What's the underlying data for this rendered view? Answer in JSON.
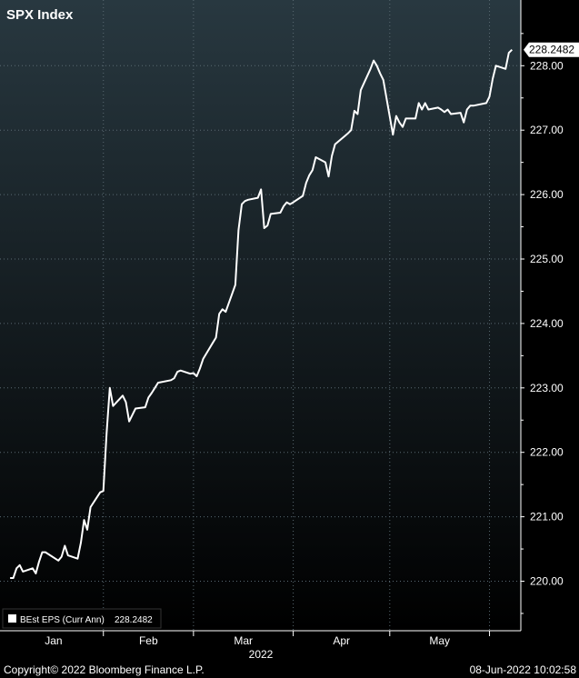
{
  "chart_data": {
    "type": "line",
    "title": "SPX Index",
    "xlabel": "2022",
    "ylabel": "",
    "ylim": [
      219.4,
      228.8
    ],
    "y_ticks": [
      "220.00",
      "221.00",
      "222.00",
      "223.00",
      "224.00",
      "225.00",
      "226.00",
      "227.00",
      "228.00"
    ],
    "months": [
      "Jan",
      "Feb",
      "Mar",
      "Apr",
      "May"
    ],
    "year": "2022",
    "last_value_label": "228.2482",
    "grid": true,
    "legend_position": "bottom-left",
    "series": [
      {
        "name": "BEst EPS (Curr Ann)",
        "last_value": "228.2482",
        "color": "#ffffff",
        "x": [
          "2022-01-03",
          "2022-01-04",
          "2022-01-05",
          "2022-01-06",
          "2022-01-07",
          "2022-01-10",
          "2022-01-11",
          "2022-01-12",
          "2022-01-13",
          "2022-01-14",
          "2022-01-18",
          "2022-01-19",
          "2022-01-20",
          "2022-01-21",
          "2022-01-24",
          "2022-01-25",
          "2022-01-26",
          "2022-01-27",
          "2022-01-28",
          "2022-01-31",
          "2022-02-01",
          "2022-02-02",
          "2022-02-03",
          "2022-02-04",
          "2022-02-07",
          "2022-02-08",
          "2022-02-09",
          "2022-02-10",
          "2022-02-11",
          "2022-02-14",
          "2022-02-15",
          "2022-02-16",
          "2022-02-17",
          "2022-02-18",
          "2022-02-22",
          "2022-02-23",
          "2022-02-24",
          "2022-02-25",
          "2022-02-28",
          "2022-03-01",
          "2022-03-02",
          "2022-03-03",
          "2022-03-04",
          "2022-03-07",
          "2022-03-08",
          "2022-03-09",
          "2022-03-10",
          "2022-03-11",
          "2022-03-14",
          "2022-03-15",
          "2022-03-16",
          "2022-03-17",
          "2022-03-18",
          "2022-03-21",
          "2022-03-22",
          "2022-03-23",
          "2022-03-24",
          "2022-03-25",
          "2022-03-28",
          "2022-03-29",
          "2022-03-30",
          "2022-03-31",
          "2022-04-01",
          "2022-04-04",
          "2022-04-05",
          "2022-04-06",
          "2022-04-07",
          "2022-04-08",
          "2022-04-11",
          "2022-04-12",
          "2022-04-13",
          "2022-04-14",
          "2022-04-18",
          "2022-04-19",
          "2022-04-20",
          "2022-04-21",
          "2022-04-22",
          "2022-04-25",
          "2022-04-26",
          "2022-04-27",
          "2022-04-28",
          "2022-04-29",
          "2022-05-02",
          "2022-05-03",
          "2022-05-04",
          "2022-05-05",
          "2022-05-06",
          "2022-05-09",
          "2022-05-10",
          "2022-05-11",
          "2022-05-12",
          "2022-05-13",
          "2022-05-16",
          "2022-05-17",
          "2022-05-18",
          "2022-05-19",
          "2022-05-20",
          "2022-05-23",
          "2022-05-24",
          "2022-05-25",
          "2022-05-26",
          "2022-05-27",
          "2022-05-31",
          "2022-06-01",
          "2022-06-02",
          "2022-06-03",
          "2022-06-06",
          "2022-06-07",
          "2022-06-08"
        ],
        "values": [
          220.05,
          220.05,
          220.2,
          220.25,
          220.15,
          220.2,
          220.12,
          220.3,
          220.45,
          220.45,
          220.32,
          220.38,
          220.55,
          220.4,
          220.35,
          220.6,
          220.95,
          220.8,
          221.15,
          221.38,
          221.4,
          222.3,
          223.0,
          222.72,
          222.88,
          222.78,
          222.48,
          222.58,
          222.68,
          222.7,
          222.85,
          222.92,
          223.0,
          223.08,
          223.12,
          223.15,
          223.25,
          223.27,
          223.22,
          223.23,
          223.18,
          223.3,
          223.45,
          223.7,
          223.78,
          224.15,
          224.22,
          224.18,
          224.6,
          225.45,
          225.85,
          225.9,
          225.92,
          225.95,
          226.08,
          225.48,
          225.52,
          225.7,
          225.72,
          225.82,
          225.88,
          225.85,
          225.88,
          225.98,
          226.18,
          226.3,
          226.38,
          226.58,
          226.5,
          226.28,
          226.6,
          226.78,
          226.95,
          227.0,
          227.3,
          227.25,
          227.62,
          227.95,
          228.08,
          228.0,
          227.88,
          227.78,
          226.93,
          227.22,
          227.12,
          227.05,
          227.18,
          227.18,
          227.42,
          227.32,
          227.42,
          227.32,
          227.35,
          227.32,
          227.28,
          227.32,
          227.25,
          227.27,
          227.12,
          227.32,
          227.38,
          227.38,
          227.42,
          227.52,
          227.8,
          228.0,
          227.95,
          228.2,
          228.2482
        ]
      }
    ],
    "legend": [
      {
        "label": "BEst EPS (Curr Ann)",
        "value": "228.2482"
      }
    ]
  },
  "footer": {
    "copyright": "Copyright© 2022 Bloomberg Finance L.P.",
    "timestamp": "08-Jun-2022 10:02:58"
  },
  "colors": {
    "background_top": "#283840",
    "background_bottom": "#000000",
    "grid": "#5a6a72",
    "line": "#ffffff",
    "last_value_box": "#ffffff"
  }
}
